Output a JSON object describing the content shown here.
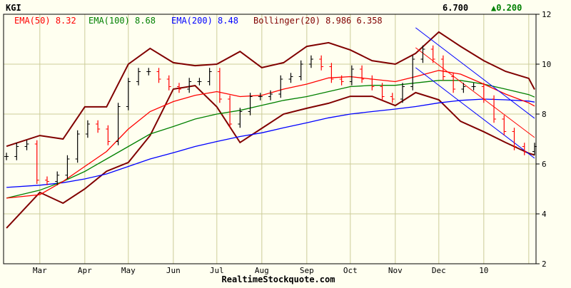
{
  "header": {
    "symbol": "KGI",
    "last_price": "6.700",
    "change": "▲0.200",
    "change_color": "#008000"
  },
  "legend": {
    "ema50": {
      "label": "EMA(50)",
      "value": "8.32",
      "color": "#ff0000"
    },
    "ema100": {
      "label": "EMA(100)",
      "value": "8.68",
      "color": "#008000"
    },
    "ema200": {
      "label": "EMA(200)",
      "value": "8.48",
      "color": "#0000ff"
    },
    "bollinger": {
      "label": "Bollinger(20)",
      "upper": "8.986",
      "lower": "6.358",
      "color": "#800000"
    }
  },
  "footer": {
    "source": "RealtimeStockquote.com"
  },
  "chart_data": {
    "type": "line",
    "title": "",
    "xlim": [
      "2009-02-04",
      "2010-02-06"
    ],
    "ylim": [
      2,
      12
    ],
    "y_ticks": [
      "12",
      "10",
      "8",
      "6",
      "4",
      "2"
    ],
    "x_ticks": [
      {
        "label": "Mar",
        "date": "2009-03-01"
      },
      {
        "label": "Apr",
        "date": "2009-04-01"
      },
      {
        "label": "May",
        "date": "2009-05-01"
      },
      {
        "label": "Jun",
        "date": "2009-06-01"
      },
      {
        "label": "Jul",
        "date": "2009-07-01"
      },
      {
        "label": "Aug",
        "date": "2009-08-01"
      },
      {
        "label": "Sep",
        "date": "2009-09-01"
      },
      {
        "label": "Oct",
        "date": "2009-10-01"
      },
      {
        "label": "Nov",
        "date": "2009-11-01"
      },
      {
        "label": "Dec",
        "date": "2009-12-01"
      },
      {
        "label": "10",
        "date": "2010-01-01"
      },
      {
        "label": "",
        "date": "2010-02-01"
      }
    ],
    "grid": true,
    "price": {
      "dates": [
        "2009-02-06",
        "2009-02-13",
        "2009-02-20",
        "2009-02-27",
        "2009-03-06",
        "2009-03-13",
        "2009-03-20",
        "2009-03-27",
        "2009-04-03",
        "2009-04-10",
        "2009-04-17",
        "2009-04-24",
        "2009-05-01",
        "2009-05-08",
        "2009-05-15",
        "2009-05-22",
        "2009-05-29",
        "2009-06-05",
        "2009-06-12",
        "2009-06-19",
        "2009-06-26",
        "2009-07-03",
        "2009-07-10",
        "2009-07-17",
        "2009-07-24",
        "2009-07-31",
        "2009-08-07",
        "2009-08-14",
        "2009-08-21",
        "2009-08-28",
        "2009-09-04",
        "2009-09-11",
        "2009-09-18",
        "2009-09-25",
        "2009-10-02",
        "2009-10-09",
        "2009-10-16",
        "2009-10-23",
        "2009-10-30",
        "2009-11-06",
        "2009-11-13",
        "2009-11-20",
        "2009-11-27",
        "2009-12-04",
        "2009-12-11",
        "2009-12-18",
        "2009-12-25",
        "2010-01-01",
        "2010-01-08",
        "2010-01-15",
        "2010-01-22",
        "2010-01-29",
        "2010-02-05"
      ],
      "close": [
        6.3,
        6.7,
        6.8,
        5.35,
        5.3,
        5.55,
        6.2,
        7.2,
        7.6,
        7.4,
        6.9,
        8.3,
        9.3,
        9.7,
        9.7,
        9.4,
        9.1,
        9.0,
        9.3,
        9.3,
        9.7,
        8.6,
        7.6,
        8.1,
        8.7,
        8.7,
        8.8,
        9.4,
        9.5,
        10.0,
        10.2,
        9.9,
        9.4,
        9.3,
        9.8,
        9.4,
        9.1,
        8.7,
        8.6,
        9.1,
        10.2,
        10.6,
        10.2,
        9.5,
        9.0,
        9.1,
        9.1,
        8.6,
        7.8,
        7.3,
        6.7,
        6.5,
        6.7
      ]
    },
    "overlay_dates": [
      "2009-02-06",
      "2009-03-01",
      "2009-03-17",
      "2009-04-01",
      "2009-04-16",
      "2009-05-01",
      "2009-05-16",
      "2009-06-01",
      "2009-06-16",
      "2009-07-01",
      "2009-07-17",
      "2009-08-01",
      "2009-08-16",
      "2009-09-01",
      "2009-09-16",
      "2009-10-01",
      "2009-10-16",
      "2009-11-01",
      "2009-11-15",
      "2009-12-01",
      "2009-12-16",
      "2010-01-01",
      "2010-01-16",
      "2010-02-01",
      "2010-02-05"
    ],
    "series": [
      {
        "name": "EMA(50)",
        "color": "#ff0000",
        "values": [
          4.63,
          4.77,
          5.3,
          5.9,
          6.5,
          7.4,
          8.1,
          8.5,
          8.75,
          8.9,
          8.7,
          8.75,
          9.0,
          9.2,
          9.45,
          9.5,
          9.4,
          9.3,
          9.5,
          9.75,
          9.6,
          9.2,
          8.8,
          8.45,
          8.32
        ]
      },
      {
        "name": "EMA(100)",
        "color": "#008000",
        "values": [
          4.63,
          4.95,
          5.3,
          5.7,
          6.2,
          6.7,
          7.2,
          7.5,
          7.8,
          8.0,
          8.15,
          8.35,
          8.55,
          8.7,
          8.9,
          9.1,
          9.15,
          9.15,
          9.25,
          9.35,
          9.35,
          9.2,
          9.0,
          8.78,
          8.68
        ]
      },
      {
        "name": "EMA(200)",
        "color": "#0000ff",
        "values": [
          5.06,
          5.15,
          5.25,
          5.4,
          5.6,
          5.9,
          6.2,
          6.45,
          6.7,
          6.9,
          7.1,
          7.25,
          7.45,
          7.65,
          7.85,
          8.0,
          8.1,
          8.2,
          8.3,
          8.45,
          8.55,
          8.6,
          8.57,
          8.52,
          8.48
        ]
      },
      {
        "name": "Bollinger(20) upper",
        "color": "#800000",
        "values": [
          6.71,
          7.14,
          7.0,
          8.29,
          8.29,
          10.0,
          10.63,
          10.06,
          9.94,
          10.0,
          10.51,
          9.86,
          10.06,
          10.71,
          10.86,
          10.57,
          10.14,
          10.0,
          10.43,
          11.29,
          10.71,
          10.14,
          9.71,
          9.43,
          8.986
        ]
      },
      {
        "name": "Bollinger(20) lower",
        "color": "#800000",
        "values": [
          3.43,
          4.86,
          4.43,
          5.0,
          5.71,
          6.06,
          7.14,
          9.0,
          9.14,
          8.29,
          6.86,
          7.43,
          8.0,
          8.23,
          8.43,
          8.71,
          8.71,
          8.34,
          8.86,
          8.57,
          7.71,
          7.29,
          6.86,
          6.43,
          6.358
        ]
      }
    ],
    "trend_channel": {
      "dates": [
        "2009-11-15",
        "2010-02-05"
      ],
      "upper": {
        "color": "#0000ff",
        "values": [
          11.46,
          7.83
        ]
      },
      "middle": {
        "color": "#ff0000",
        "values": [
          10.66,
          7.06
        ]
      },
      "lower": {
        "color": "#0000ff",
        "values": [
          9.86,
          6.23
        ]
      }
    }
  }
}
